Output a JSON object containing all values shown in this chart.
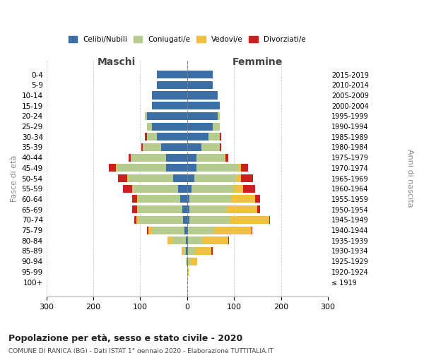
{
  "age_groups": [
    "100+",
    "95-99",
    "90-94",
    "85-89",
    "80-84",
    "75-79",
    "70-74",
    "65-69",
    "60-64",
    "55-59",
    "50-54",
    "45-49",
    "40-44",
    "35-39",
    "30-34",
    "25-29",
    "20-24",
    "15-19",
    "10-14",
    "5-9",
    "0-4"
  ],
  "birth_years": [
    "≤ 1919",
    "1920-1924",
    "1925-1929",
    "1930-1934",
    "1935-1939",
    "1940-1944",
    "1945-1949",
    "1950-1954",
    "1955-1959",
    "1960-1964",
    "1965-1969",
    "1970-1974",
    "1975-1979",
    "1980-1984",
    "1985-1989",
    "1990-1994",
    "1995-1999",
    "2000-2004",
    "2005-2009",
    "2010-2014",
    "2015-2019"
  ],
  "males": {
    "celibi": [
      0,
      0,
      0,
      2,
      2,
      5,
      8,
      10,
      15,
      20,
      30,
      45,
      45,
      55,
      65,
      75,
      85,
      75,
      75,
      65,
      65
    ],
    "coniugati": [
      0,
      0,
      2,
      5,
      30,
      70,
      95,
      95,
      90,
      95,
      95,
      105,
      75,
      40,
      20,
      10,
      5,
      0,
      0,
      0,
      0
    ],
    "vedovi": [
      0,
      0,
      0,
      5,
      10,
      8,
      5,
      2,
      2,
      2,
      2,
      2,
      0,
      0,
      0,
      0,
      0,
      0,
      0,
      0,
      0
    ],
    "divorziati": [
      0,
      0,
      0,
      0,
      0,
      2,
      5,
      10,
      10,
      20,
      20,
      15,
      5,
      2,
      5,
      0,
      0,
      0,
      0,
      0,
      0
    ]
  },
  "females": {
    "nubili": [
      0,
      0,
      2,
      2,
      2,
      2,
      5,
      5,
      5,
      10,
      15,
      20,
      20,
      30,
      45,
      55,
      65,
      70,
      65,
      55,
      55
    ],
    "coniugate": [
      0,
      2,
      5,
      15,
      30,
      55,
      85,
      80,
      90,
      90,
      90,
      90,
      60,
      40,
      25,
      15,
      5,
      0,
      0,
      0,
      0
    ],
    "vedove": [
      0,
      2,
      15,
      35,
      55,
      80,
      85,
      65,
      50,
      20,
      10,
      5,
      2,
      0,
      0,
      0,
      0,
      0,
      0,
      0,
      0
    ],
    "divorziate": [
      0,
      0,
      0,
      2,
      2,
      2,
      2,
      5,
      10,
      25,
      25,
      15,
      5,
      2,
      2,
      0,
      0,
      0,
      0,
      0,
      0
    ]
  },
  "colors": {
    "celibi": "#3A6EA5",
    "coniugati": "#B5CC8E",
    "vedovi": "#F0C040",
    "divorziati": "#CC2020"
  },
  "title": "Popolazione per età, sesso e stato civile - 2020",
  "subtitle": "COMUNE DI RANICA (BG) - Dati ISTAT 1° gennaio 2020 - Elaborazione TUTTITALIA.IT",
  "xlim": 300,
  "background_color": "#ffffff",
  "grid_color": "#cccccc"
}
